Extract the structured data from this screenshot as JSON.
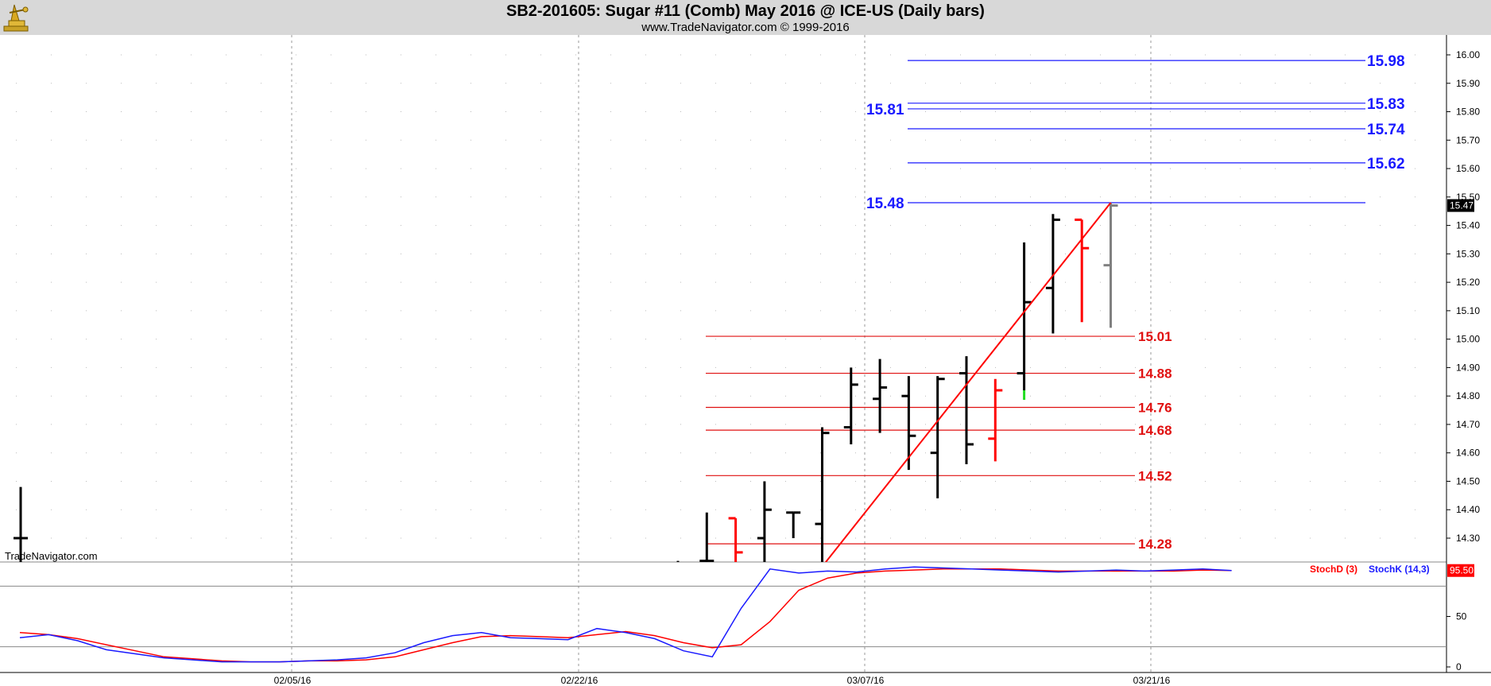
{
  "header": {
    "title": "SB2-201605:  Sugar #11 (Comb) May 2016 @ ICE-US  (Daily bars)",
    "subtitle": "www.TradeNavigator.com © 1999-2016",
    "logo_icon": "trade-navigator-logo-icon"
  },
  "watermark": "TradeNavigator.com",
  "colors": {
    "bar_up": "#000000",
    "bar_down": "#ff0000",
    "bar_last": "#808080",
    "level_blue": "#1a1aff",
    "level_red": "#e01010",
    "trendline": "#ff0000",
    "stoch_d": "#ff0000",
    "stoch_k": "#1a1aff",
    "header_bg": "#d8d8d8"
  },
  "chart_data": {
    "type": "ohlc",
    "price_axis": {
      "ticks": [
        "16.00",
        "15.90",
        "15.80",
        "15.70",
        "15.60",
        "15.50",
        "15.40",
        "15.30",
        "15.20",
        "15.10",
        "15.00",
        "14.90",
        "14.80",
        "14.70",
        "14.60",
        "14.50",
        "14.40",
        "14.30"
      ],
      "last_price": "15.47"
    },
    "x_axis": {
      "labels": [
        "02/05/16",
        "02/22/16",
        "03/07/16",
        "03/21/16"
      ]
    },
    "bars": [
      {
        "high": 14.48,
        "low": 14.1,
        "open": 14.3,
        "close": 14.3,
        "color": "up"
      },
      {
        "high": 14.22,
        "low": 14.1,
        "open": 14.21,
        "close": 14.21,
        "color": "up"
      },
      {
        "high": 14.39,
        "low": 14.1,
        "open": 14.22,
        "close": 14.22,
        "color": "up"
      },
      {
        "high": 14.37,
        "low": 14.1,
        "open": 14.37,
        "close": 14.25,
        "color": "down"
      },
      {
        "high": 14.5,
        "low": 14.1,
        "open": 14.3,
        "close": 14.4,
        "color": "up"
      },
      {
        "high": 14.39,
        "low": 14.3,
        "open": 14.39,
        "close": 14.39,
        "color": "up"
      },
      {
        "high": 14.69,
        "low": 14.16,
        "open": 14.35,
        "close": 14.67,
        "color": "up"
      },
      {
        "high": 14.9,
        "low": 14.63,
        "open": 14.69,
        "close": 14.84,
        "color": "up"
      },
      {
        "high": 14.93,
        "low": 14.67,
        "open": 14.79,
        "close": 14.83,
        "color": "up"
      },
      {
        "high": 14.87,
        "low": 14.54,
        "open": 14.8,
        "close": 14.66,
        "color": "up"
      },
      {
        "high": 14.87,
        "low": 14.44,
        "open": 14.6,
        "close": 14.86,
        "color": "up"
      },
      {
        "high": 14.94,
        "low": 14.56,
        "open": 14.88,
        "close": 14.63,
        "color": "up"
      },
      {
        "high": 14.86,
        "low": 14.57,
        "open": 14.65,
        "close": 14.82,
        "color": "down"
      },
      {
        "high": 15.34,
        "low": 14.82,
        "open": 14.88,
        "close": 15.13,
        "color": "up"
      },
      {
        "high": 15.44,
        "low": 15.02,
        "open": 15.18,
        "close": 15.42,
        "color": "up"
      },
      {
        "high": 15.42,
        "low": 15.06,
        "open": 15.42,
        "close": 15.32,
        "color": "down"
      },
      {
        "high": 15.48,
        "low": 15.04,
        "open": 15.26,
        "close": 15.47,
        "color": "last"
      }
    ],
    "levels_blue": [
      {
        "value": 15.98,
        "label": "15.98",
        "label_side": "right"
      },
      {
        "value": 15.83,
        "label": "15.83",
        "label_side": "right"
      },
      {
        "value": 15.81,
        "label": "15.81",
        "label_side": "left"
      },
      {
        "value": 15.74,
        "label": "15.74",
        "label_side": "right"
      },
      {
        "value": 15.62,
        "label": "15.62",
        "label_side": "right"
      },
      {
        "value": 15.48,
        "label": "15.48",
        "label_side": "left"
      }
    ],
    "levels_red": [
      {
        "value": 15.01,
        "label": "15.01"
      },
      {
        "value": 14.88,
        "label": "14.88"
      },
      {
        "value": 14.76,
        "label": "14.76"
      },
      {
        "value": 14.68,
        "label": "14.68"
      },
      {
        "value": 14.52,
        "label": "14.52"
      },
      {
        "value": 14.28,
        "label": "14.28"
      }
    ],
    "trendline": {
      "from": {
        "bar": 6,
        "price": 14.2
      },
      "to": {
        "bar": 16,
        "price": 15.48
      }
    },
    "stochastic": {
      "d_label": "StochD (3)",
      "k_label": "StochK (14,3)",
      "value_label": "95.50",
      "axis_ticks": [
        "50",
        "0"
      ],
      "range": [
        0,
        100
      ],
      "ref_lines": [
        80,
        20
      ],
      "k": [
        29,
        32,
        26,
        17,
        13,
        9,
        7,
        5,
        5,
        5,
        6,
        7,
        9,
        14,
        24,
        31,
        34,
        29,
        28,
        27,
        38,
        34,
        28,
        16,
        10,
        58,
        97,
        93,
        95,
        94,
        97,
        99,
        98,
        97,
        96,
        95,
        94,
        95,
        96,
        95,
        96,
        97,
        95.5
      ],
      "d": [
        34,
        32,
        28,
        22,
        16,
        10,
        8,
        6,
        5,
        5,
        6,
        6,
        7,
        10,
        17,
        24,
        30,
        31,
        30,
        29,
        32,
        35,
        31,
        24,
        19,
        22,
        45,
        76,
        88,
        93,
        95,
        96,
        97,
        97,
        97,
        96,
        95,
        95,
        95,
        95,
        95,
        96,
        95.5
      ]
    }
  }
}
